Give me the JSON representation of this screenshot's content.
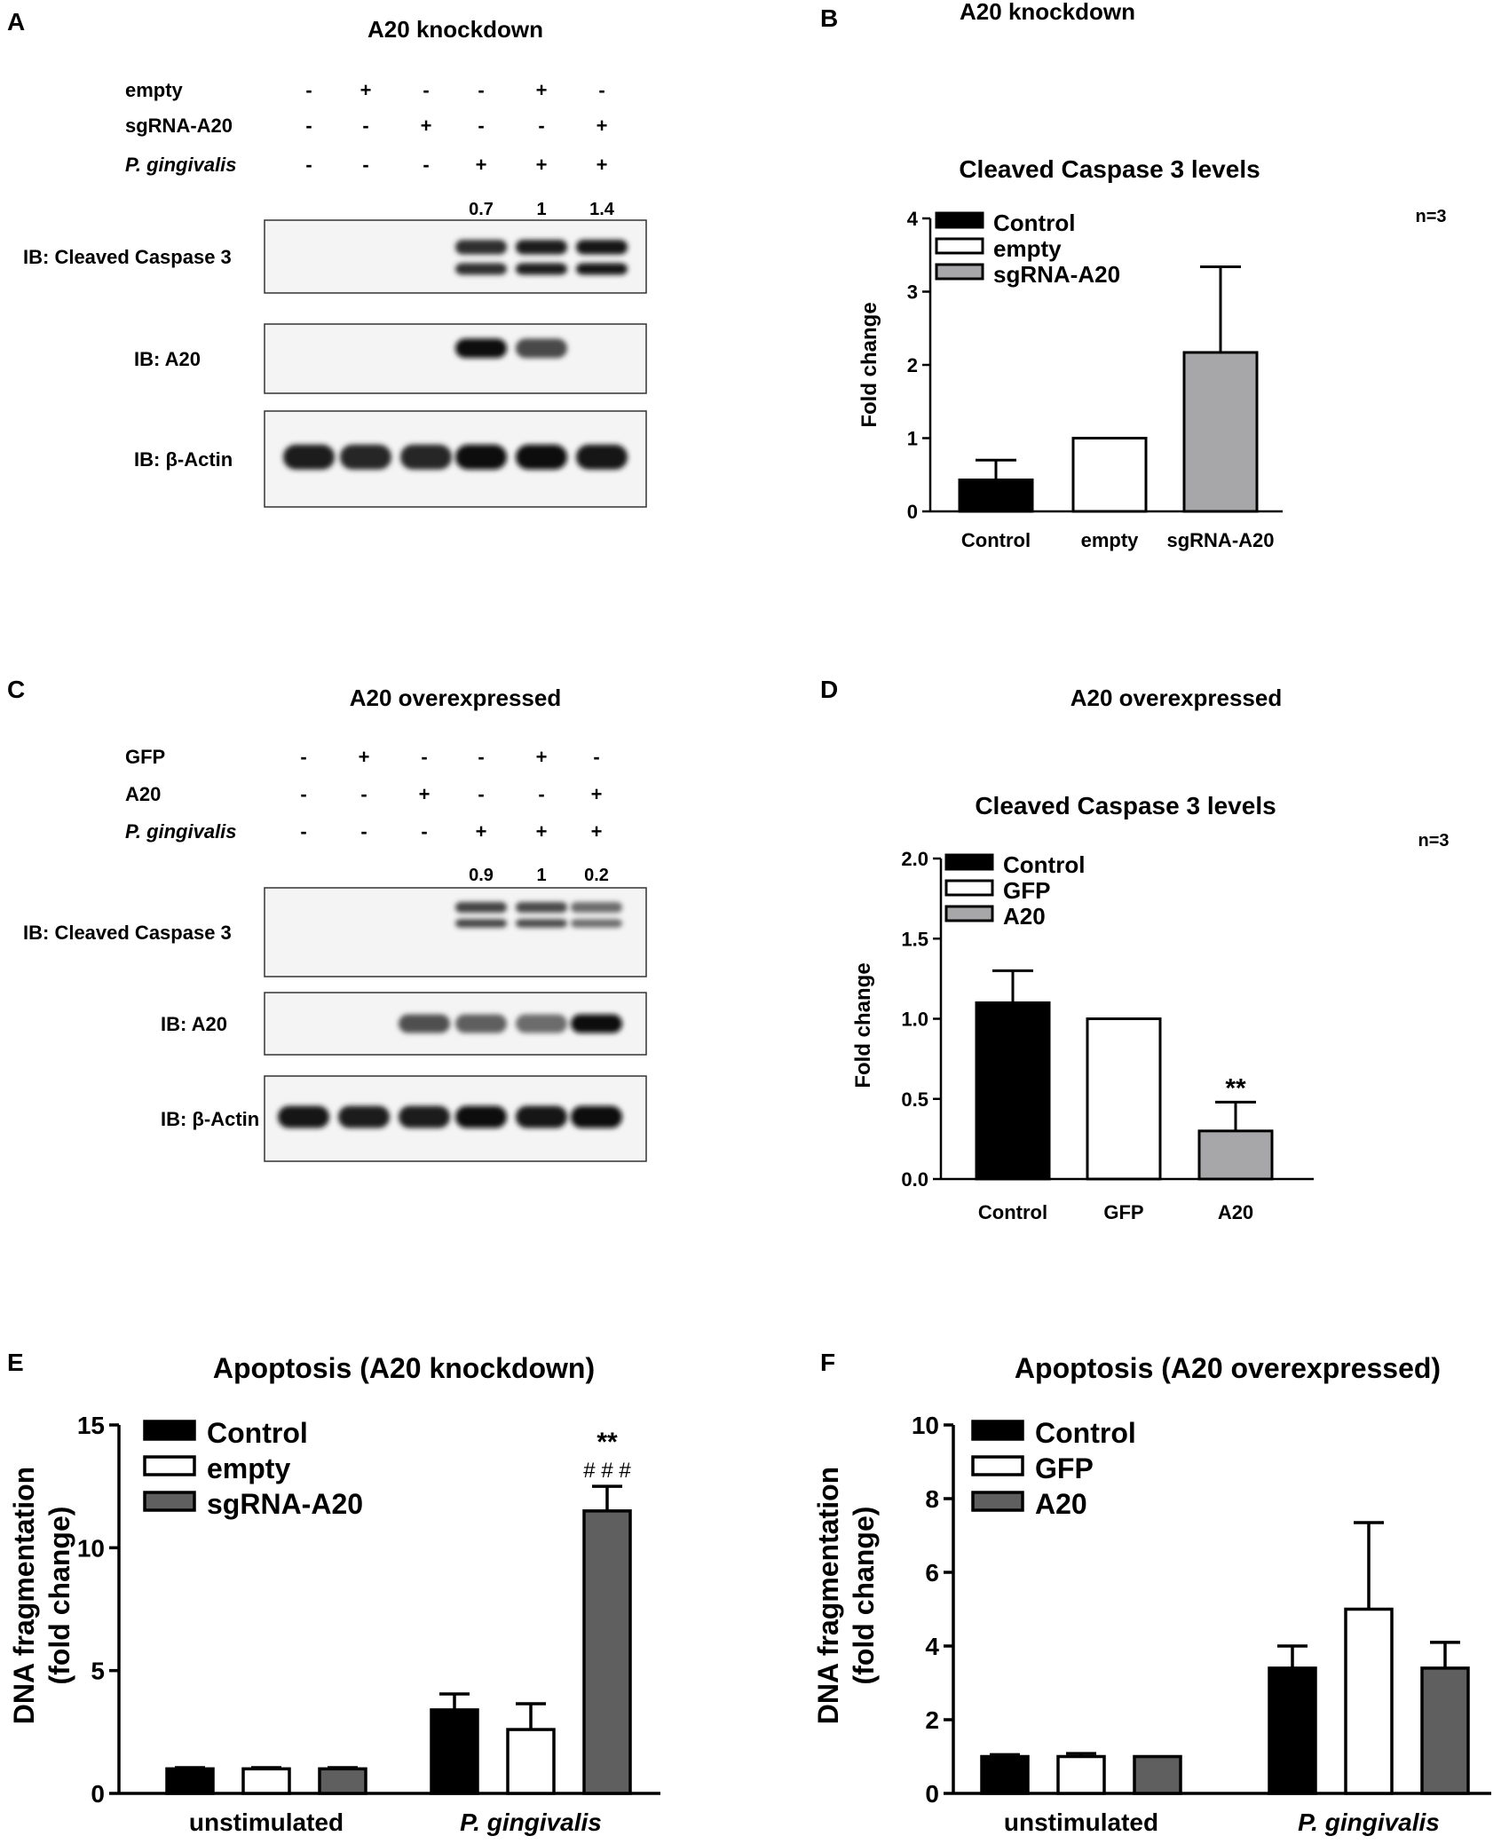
{
  "panels": {
    "A": {
      "letter": "A",
      "title": "A20 knockdown",
      "rows": [
        {
          "label": "empty",
          "italic": false,
          "signs": [
            "-",
            "+",
            "-",
            "-",
            "+",
            "-"
          ]
        },
        {
          "label": "sgRNA-A20",
          "italic": false,
          "signs": [
            "-",
            "-",
            "+",
            "-",
            "-",
            "+"
          ]
        },
        {
          "label": "P. gingivalis",
          "italic": true,
          "signs": [
            "-",
            "-",
            "-",
            "+",
            "+",
            "+"
          ]
        }
      ],
      "ratios": [
        "0.7",
        "1",
        "1.4"
      ],
      "blots": [
        {
          "label": "IB: Cleaved Caspase 3",
          "intensity": [
            0,
            0,
            0,
            0.75,
            0.85,
            0.9
          ]
        },
        {
          "label": "IB: A20",
          "intensity": [
            0,
            0,
            0,
            0.95,
            0.55,
            0
          ]
        },
        {
          "label": "IB: β-Actin",
          "intensity": [
            0.85,
            0.8,
            0.8,
            1.0,
            1.0,
            0.9
          ]
        }
      ]
    },
    "C": {
      "letter": "C",
      "title": "A20 overexpressed",
      "rows": [
        {
          "label": "GFP",
          "italic": false,
          "signs": [
            "-",
            "+",
            "-",
            "-",
            "+",
            "-"
          ]
        },
        {
          "label": "A20",
          "italic": false,
          "signs": [
            "-",
            "-",
            "+",
            "-",
            "-",
            "+"
          ]
        },
        {
          "label": "P. gingivalis",
          "italic": true,
          "signs": [
            "-",
            "-",
            "-",
            "+",
            "+",
            "+"
          ]
        }
      ],
      "ratios": [
        "0.9",
        "1",
        "0.2"
      ],
      "blots": [
        {
          "label": "IB: Cleaved Caspase 3",
          "intensity": [
            0,
            0,
            0,
            0.6,
            0.55,
            0.3
          ]
        },
        {
          "label": "IB: A20",
          "intensity": [
            0,
            0,
            0.5,
            0.4,
            0.3,
            1.0
          ]
        },
        {
          "label": "IB: β-Actin",
          "intensity": [
            0.9,
            0.85,
            0.85,
            0.95,
            0.9,
            1.0
          ]
        }
      ]
    }
  },
  "colors": {
    "control": "#000000",
    "empty": "#ffffff",
    "sgRNA_light": "#a7a7a9",
    "sgRNA_dark": "#5f5f5f"
  },
  "chart_data": [
    {
      "panel": "B",
      "type": "bar",
      "supertitle": "A20 knockdown",
      "title": "Cleaved Caspase 3 levels",
      "ylabel": "Fold change",
      "xlabel": "",
      "annotation": "n=3",
      "ylim": [
        0,
        4
      ],
      "yticks": [
        "0",
        "1",
        "2",
        "3",
        "4"
      ],
      "categories": [
        "Control",
        "empty",
        "sgRNA-A20"
      ],
      "values": [
        0.43,
        1.0,
        2.17
      ],
      "errors": [
        0.27,
        0,
        1.17
      ],
      "fills": [
        "#000000",
        "#ffffff",
        "#a7a7a9"
      ],
      "legend": [
        "Control",
        "empty",
        "sgRNA-A20"
      ],
      "legend_position": "top-left",
      "significance": [
        "",
        "",
        ""
      ]
    },
    {
      "panel": "D",
      "type": "bar",
      "supertitle": "A20 overexpressed",
      "title": "Cleaved Caspase 3 levels",
      "ylabel": "Fold change",
      "xlabel": "",
      "annotation": "n=3",
      "ylim": [
        0,
        2.0
      ],
      "yticks": [
        "0.0",
        "0.5",
        "1.0",
        "1.5",
        "2.0"
      ],
      "categories": [
        "Control",
        "GFP",
        "A20"
      ],
      "values": [
        1.1,
        1.0,
        0.3
      ],
      "errors": [
        0.2,
        0,
        0.18
      ],
      "fills": [
        "#000000",
        "#ffffff",
        "#a7a7a9"
      ],
      "legend": [
        "Control",
        "GFP",
        "A20"
      ],
      "legend_position": "top-left",
      "significance": [
        "",
        "",
        "**"
      ]
    },
    {
      "panel": "E",
      "type": "bar",
      "title": "Apoptosis (A20 knockdown)",
      "ylabel": "DNA fragmentation (fold change)",
      "xlabel": "",
      "ylim": [
        0,
        15
      ],
      "yticks": [
        "0",
        "5",
        "10",
        "15"
      ],
      "categories": [
        "unstimulated",
        "P. gingivalis"
      ],
      "category_italic": [
        false,
        true
      ],
      "series": [
        {
          "name": "Control",
          "values": [
            1.0,
            3.4
          ],
          "errors": [
            0.05,
            0.65
          ],
          "fill": "#000000"
        },
        {
          "name": "empty",
          "values": [
            1.0,
            2.6
          ],
          "errors": [
            0.05,
            1.05
          ],
          "fill": "#ffffff"
        },
        {
          "name": "sgRNA-A20",
          "values": [
            1.0,
            11.5
          ],
          "errors": [
            0.05,
            1.0
          ],
          "fill": "#5f5f5f"
        }
      ],
      "legend_position": "top-left",
      "significance": {
        "text": "**",
        "hash": "# # #"
      }
    },
    {
      "panel": "F",
      "type": "bar",
      "title": "Apoptosis (A20 overexpressed)",
      "ylabel": "DNA fragmentation (fold change)",
      "xlabel": "",
      "ylim": [
        0,
        10
      ],
      "yticks": [
        "0",
        "2",
        "4",
        "6",
        "8",
        "10"
      ],
      "categories": [
        "unstimulated",
        "P. gingivalis"
      ],
      "category_italic": [
        false,
        true
      ],
      "series": [
        {
          "name": "Control",
          "values": [
            1.0,
            3.4
          ],
          "errors": [
            0.05,
            0.6
          ],
          "fill": "#000000"
        },
        {
          "name": "GFP",
          "values": [
            1.0,
            5.0
          ],
          "errors": [
            0.08,
            2.35
          ],
          "fill": "#ffffff"
        },
        {
          "name": "A20",
          "values": [
            1.0,
            3.4
          ],
          "errors": [
            0.0,
            0.7
          ],
          "fill": "#5f5f5f"
        }
      ],
      "legend_position": "top-left"
    }
  ]
}
